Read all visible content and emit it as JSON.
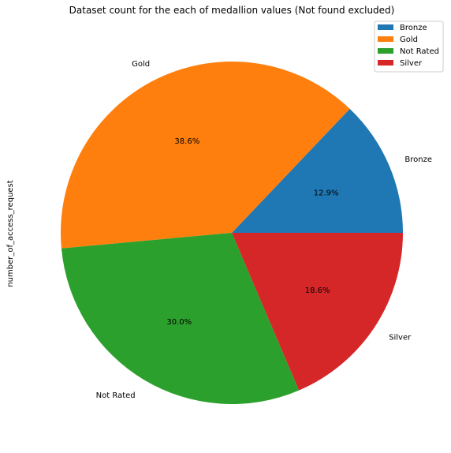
{
  "chart_data": {
    "type": "pie",
    "title": "Dataset count for the each of medallion values (Not found excluded)",
    "ylabel": "number_of_access_request",
    "slices": [
      {
        "label": "Bronze",
        "percent": 12.9,
        "percent_label": "12.9%",
        "color": "#1f77b4"
      },
      {
        "label": "Gold",
        "percent": 38.6,
        "percent_label": "38.6%",
        "color": "#ff7f0e"
      },
      {
        "label": "Not Rated",
        "percent": 30.0,
        "percent_label": "30.0%",
        "color": "#2ca02c"
      },
      {
        "label": "Silver",
        "percent": 18.6,
        "percent_label": "18.6%",
        "color": "#d62728"
      }
    ],
    "legend_position": "top-right"
  }
}
